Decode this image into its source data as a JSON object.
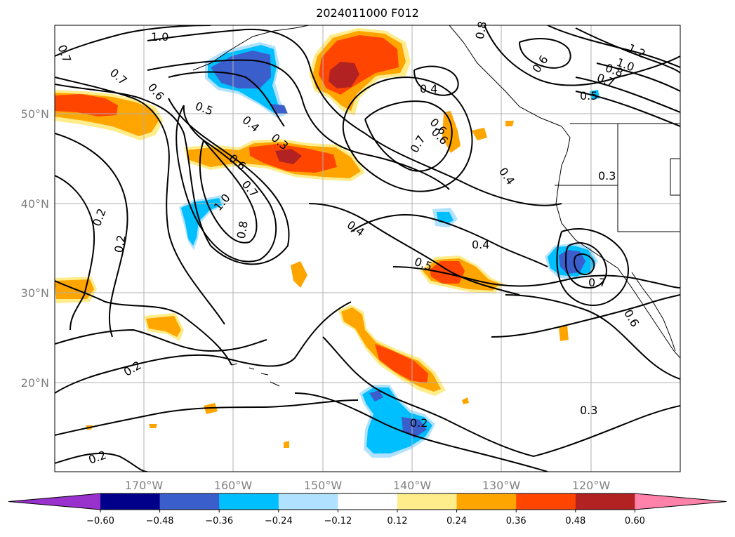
{
  "title": "2024011000 F012",
  "map": {
    "lon_labels": [
      "170°W",
      "160°W",
      "150°W",
      "140°W",
      "130°W",
      "120°W"
    ],
    "lat_labels": [
      "50°N",
      "40°N",
      "30°N",
      "20°N"
    ],
    "contour_labels": [
      "1.0",
      "0.7",
      "0.7",
      "0.6",
      "0.5",
      "0.4",
      "0.3",
      "0.6",
      "0.7",
      "1.0",
      "0.8",
      "0.2",
      "0.2",
      "0.2",
      "0.2",
      "0.4",
      "0.4",
      "0.5",
      "0.4",
      "0.7",
      "0.6",
      "0.4",
      "0.6",
      "0.8",
      "0.7",
      "1.2",
      "1.0",
      "0.5",
      "0.3",
      "0.7",
      "0.6",
      "0.3",
      "0.2",
      "0.8",
      "0.6"
    ]
  },
  "colorbar": {
    "labels": [
      "−0.60",
      "−0.48",
      "−0.36",
      "−0.24",
      "−0.12",
      "0.12",
      "0.24",
      "0.36",
      "0.48",
      "0.60"
    ],
    "colors": [
      "#9932cc",
      "#00008b",
      "#3a5fcd",
      "#00bfff",
      "#b0e2ff",
      "#ffffff",
      "#ffec8b",
      "#ffa500",
      "#ff4500",
      "#b22222",
      "#ff82ab"
    ]
  }
}
